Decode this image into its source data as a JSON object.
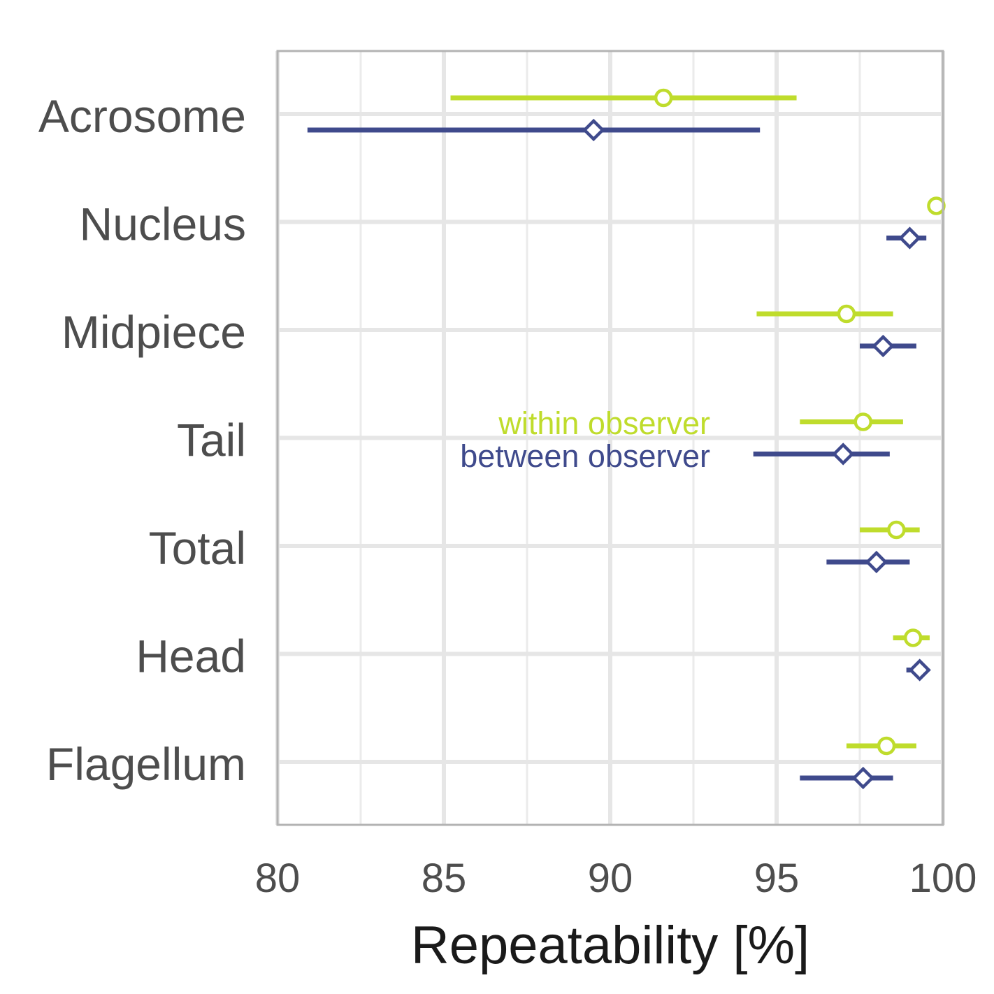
{
  "chart_data": {
    "type": "scatter",
    "subtype": "dot-with-interval",
    "xlabel": "Repeatability [%]",
    "ylabel": "",
    "xlim": [
      80,
      100
    ],
    "x_ticks": [
      80,
      85,
      90,
      95,
      100
    ],
    "categories": [
      "Acrosome",
      "Nucleus",
      "Midpiece",
      "Tail",
      "Total",
      "Head",
      "Flagellum"
    ],
    "grid": true,
    "legend_placement": "inside, left of the Tail row",
    "series": [
      {
        "name": "within observer",
        "color": "#bfdc2c",
        "marker": "open-circle",
        "points": [
          {
            "category": "Acrosome",
            "estimate": 91.6,
            "lower": 85.2,
            "upper": 95.6
          },
          {
            "category": "Nucleus",
            "estimate": 99.8,
            "lower": 99.8,
            "upper": 99.8
          },
          {
            "category": "Midpiece",
            "estimate": 97.1,
            "lower": 94.4,
            "upper": 98.5
          },
          {
            "category": "Tail",
            "estimate": 97.6,
            "lower": 95.7,
            "upper": 98.8
          },
          {
            "category": "Total",
            "estimate": 98.6,
            "lower": 97.5,
            "upper": 99.3
          },
          {
            "category": "Head",
            "estimate": 99.1,
            "lower": 98.5,
            "upper": 99.6
          },
          {
            "category": "Flagellum",
            "estimate": 98.3,
            "lower": 97.1,
            "upper": 99.2
          }
        ]
      },
      {
        "name": "between observer",
        "color": "#3f4a8c",
        "marker": "open-diamond",
        "points": [
          {
            "category": "Acrosome",
            "estimate": 89.5,
            "lower": 80.9,
            "upper": 94.5
          },
          {
            "category": "Nucleus",
            "estimate": 99.0,
            "lower": 98.3,
            "upper": 99.5
          },
          {
            "category": "Midpiece",
            "estimate": 98.2,
            "lower": 97.5,
            "upper": 99.2
          },
          {
            "category": "Tail",
            "estimate": 97.0,
            "lower": 94.3,
            "upper": 98.4
          },
          {
            "category": "Total",
            "estimate": 98.0,
            "lower": 96.5,
            "upper": 99.0
          },
          {
            "category": "Head",
            "estimate": 99.3,
            "lower": 98.9,
            "upper": 99.4
          },
          {
            "category": "Flagellum",
            "estimate": 97.6,
            "lower": 95.7,
            "upper": 98.5
          }
        ]
      }
    ]
  }
}
